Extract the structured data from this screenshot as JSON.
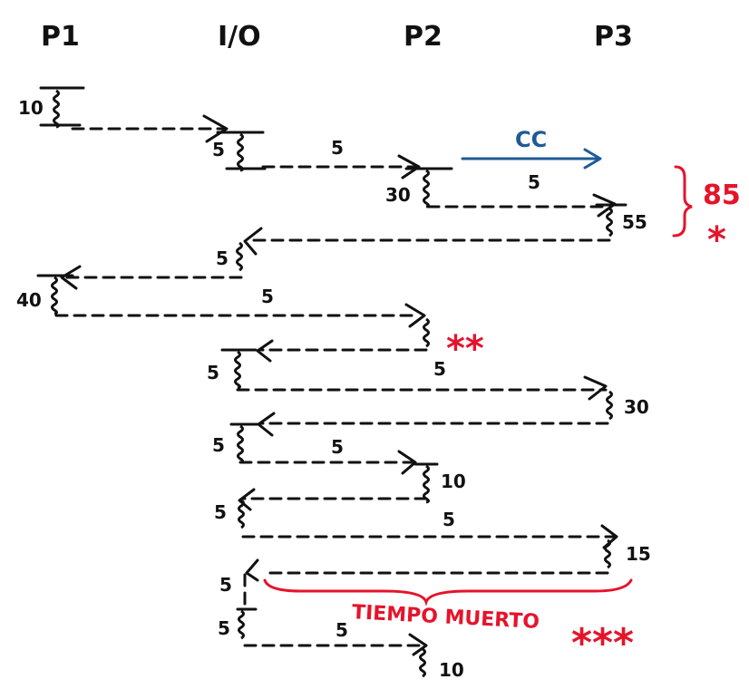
{
  "columns": {
    "p1": "P1",
    "io": "I/O",
    "p2": "P2",
    "p3": "P3"
  },
  "burst_labels": {
    "p1_first": "10",
    "io_first": "5",
    "p2_first": "30",
    "p3_first": "55",
    "io_second": "5",
    "p1_second": "40",
    "io_third": "5",
    "p3_second": "30",
    "io_fourth": "5",
    "p2_second": "10",
    "io_fifth": "5",
    "p3_third": "15",
    "io_sixth": "5",
    "io_seventh": "5",
    "p2_third": "10"
  },
  "transfer_labels": {
    "io_to_p2_1": "5",
    "p2_to_p3_1": "5",
    "p1_to_p2": "5",
    "io_to_p3_1": "5",
    "io_to_p2_2": "5",
    "io_to_p3_2": "5",
    "io_to_p2_3": "5"
  },
  "annotations": {
    "cc": "CC",
    "total": "85",
    "star1": "*",
    "star2": "**",
    "star3": "***",
    "dead_time": "TIEMPO MUERTO"
  },
  "colors": {
    "ink": "#111111",
    "red": "#e5142b",
    "blue": "#1f5a96"
  }
}
